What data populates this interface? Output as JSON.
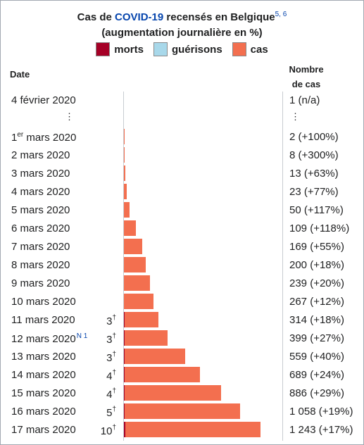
{
  "title": {
    "prefix": "Cas de ",
    "link": "COVID-19",
    "suffix": " recensés en Belgique",
    "refs": "5, 6",
    "line2": "(augmentation journalière en %)"
  },
  "legend": [
    {
      "label": "morts",
      "color": "#a50026"
    },
    {
      "label": "guérisons",
      "color": "#a8d8ea"
    },
    {
      "label": "cas",
      "color": "#f36f4f"
    }
  ],
  "headers": {
    "date": "Date",
    "cases_line1": "Nombre",
    "cases_line2": "de cas"
  },
  "ellipsis": "⋮",
  "chart_data": {
    "type": "bar",
    "orientation": "horizontal",
    "title": "Cas de COVID-19 recensés en Belgique (augmentation journalière en %)",
    "series_names": [
      "morts",
      "guérisons",
      "cas"
    ],
    "first_row": {
      "date": "4 février 2020",
      "cases": 1,
      "label": "1 (n/a)"
    },
    "rows": [
      {
        "date_main": "1",
        "date_sup": "er",
        "date_rest": " mars 2020",
        "deaths": null,
        "cases": 2,
        "label": "2 (+100%)"
      },
      {
        "date_main": "2 mars 2020",
        "deaths": null,
        "cases": 8,
        "label": "8 (+300%)"
      },
      {
        "date_main": "3 mars 2020",
        "deaths": null,
        "cases": 13,
        "label": "13 (+63%)"
      },
      {
        "date_main": "4 mars 2020",
        "deaths": null,
        "cases": 23,
        "label": "23 (+77%)"
      },
      {
        "date_main": "5 mars 2020",
        "deaths": null,
        "cases": 50,
        "label": "50 (+117%)"
      },
      {
        "date_main": "6 mars 2020",
        "deaths": null,
        "cases": 109,
        "label": "109 (+118%)"
      },
      {
        "date_main": "7 mars 2020",
        "deaths": null,
        "cases": 169,
        "label": "169 (+55%)"
      },
      {
        "date_main": "8 mars 2020",
        "deaths": null,
        "cases": 200,
        "label": "200 (+18%)"
      },
      {
        "date_main": "9 mars 2020",
        "deaths": null,
        "cases": 239,
        "label": "239 (+20%)"
      },
      {
        "date_main": "10 mars 2020",
        "deaths": null,
        "cases": 267,
        "label": "267 (+12%)"
      },
      {
        "date_main": "11 mars 2020",
        "deaths": 3,
        "cases": 314,
        "label": "314 (+18%)"
      },
      {
        "date_main": "12 mars 2020",
        "note": "N 1",
        "deaths": 3,
        "cases": 399,
        "label": "399 (+27%)"
      },
      {
        "date_main": "13 mars 2020",
        "deaths": 3,
        "cases": 559,
        "label": "559 (+40%)"
      },
      {
        "date_main": "14 mars 2020",
        "deaths": 4,
        "cases": 689,
        "label": "689 (+24%)"
      },
      {
        "date_main": "15 mars 2020",
        "deaths": 4,
        "cases": 886,
        "label": "886 (+29%)"
      },
      {
        "date_main": "16 mars 2020",
        "deaths": 5,
        "cases": 1058,
        "label": "1 058 (+19%)"
      },
      {
        "date_main": "17 mars 2020",
        "deaths": 10,
        "cases": 1243,
        "label": "1 243 (+17%)"
      }
    ],
    "death_mark": "†",
    "xmax": 1243
  }
}
